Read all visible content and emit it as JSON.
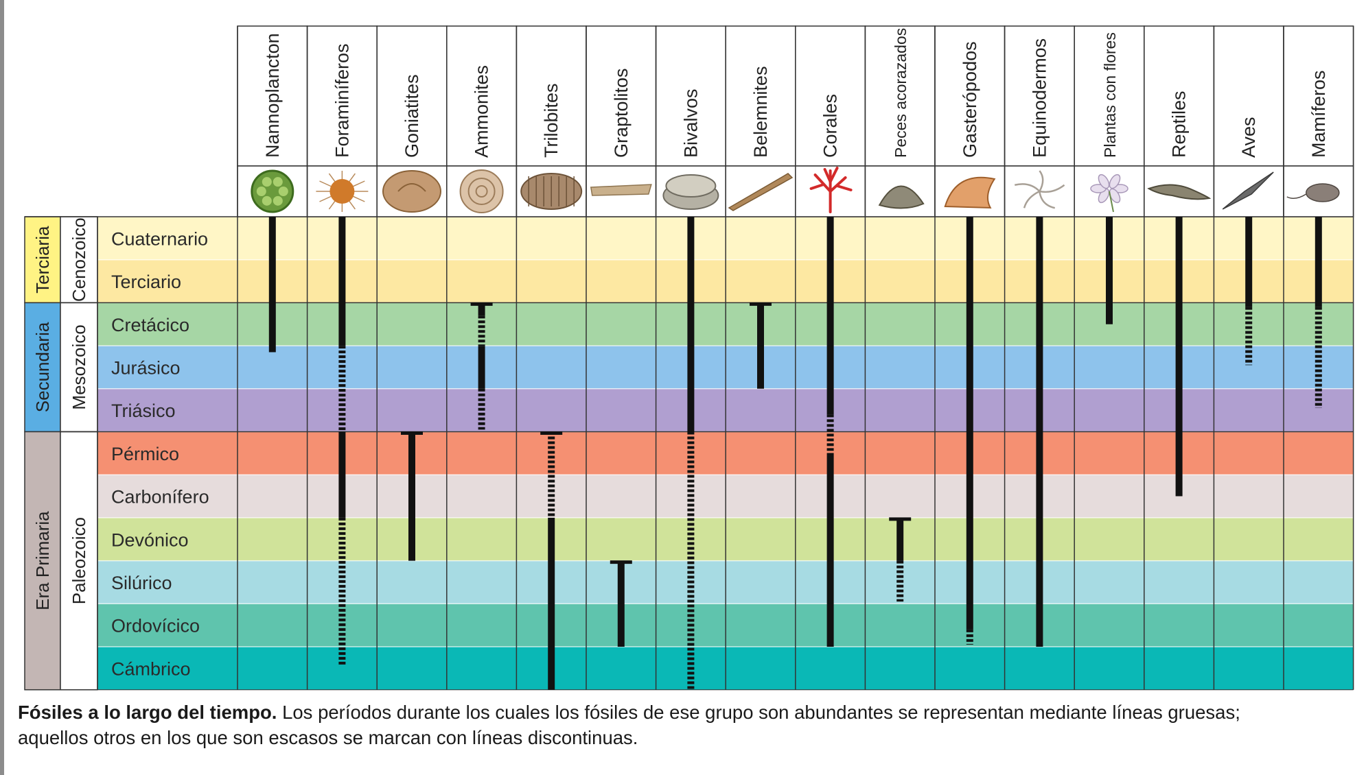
{
  "chart_data": {
    "type": "table",
    "columns": [
      "Nannoplancton",
      "Foraminíferos",
      "Goniatites",
      "Ammonites",
      "Trilobites",
      "Graptolitos",
      "Bivalvos",
      "Belemnites",
      "Corales",
      "Peces acorazados",
      "Gasterópodos",
      "Equinodermos",
      "Plantas con flores",
      "Reptiles",
      "Aves",
      "Mamíferos"
    ],
    "column_icons": [
      "nannoplankton-icon",
      "foraminifera-icon",
      "goniatite-icon",
      "ammonite-icon",
      "trilobite-icon",
      "graptolite-icon",
      "bivalve-icon",
      "belemnite-icon",
      "coral-icon",
      "armored-fish-icon",
      "gastropod-icon",
      "echinoderm-icon",
      "flower-icon",
      "reptile-icon",
      "bird-icon",
      "mammal-icon"
    ],
    "periods": [
      "Cuaternario",
      "Terciario",
      "Cretácico",
      "Jurásico",
      "Triásico",
      "Pérmico",
      "Carbonífero",
      "Devónico",
      "Silúrico",
      "Ordovícico",
      "Cámbrico"
    ],
    "period_colors": [
      "#fff6c6",
      "#fde8a2",
      "#a6d6a5",
      "#8ec3ec",
      "#b09fd0",
      "#f59072",
      "#e6dcdc",
      "#d0e39a",
      "#a7dbe3",
      "#5fc4ad",
      "#0ab8b6"
    ],
    "eras": [
      {
        "label": "Terciaria",
        "start": 0,
        "end": 1,
        "color": "#fff384"
      },
      {
        "label": "Secundaria",
        "start": 2,
        "end": 4,
        "color": "#5aaee3"
      },
      {
        "label": "Era Primaria",
        "start": 5,
        "end": 10,
        "color": "#c3b6b4"
      }
    ],
    "subeons": [
      {
        "label": "Cenozoico",
        "start": 0,
        "end": 1
      },
      {
        "label": "Mesozoico",
        "start": 2,
        "end": 4
      },
      {
        "label": "Paleozoico",
        "start": 5,
        "end": 10
      }
    ],
    "ranges": [
      {
        "column": 0,
        "segments": [
          {
            "from": 0,
            "to": 3.15,
            "style": "abundant"
          }
        ]
      },
      {
        "column": 1,
        "segments": [
          {
            "from": 0,
            "to": 3.0,
            "style": "abundant"
          },
          {
            "from": 3.0,
            "to": 5.0,
            "style": "scarce"
          },
          {
            "from": 5.0,
            "to": 7.0,
            "style": "abundant"
          },
          {
            "from": 7.0,
            "to": 10.45,
            "style": "scarce"
          }
        ]
      },
      {
        "column": 2,
        "segments": [
          {
            "from": 5.0,
            "to": 8.0,
            "style": "abundant",
            "cap": true
          }
        ]
      },
      {
        "column": 3,
        "segments": [
          {
            "from": 2.0,
            "to": 2.3,
            "style": "abundant",
            "cap": true
          },
          {
            "from": 2.3,
            "to": 3.0,
            "style": "scarce"
          },
          {
            "from": 3.0,
            "to": 4.0,
            "style": "abundant"
          },
          {
            "from": 4.0,
            "to": 4.95,
            "style": "scarce"
          }
        ]
      },
      {
        "column": 4,
        "segments": [
          {
            "from": 5.0,
            "to": 7.0,
            "style": "scarce",
            "cap": true
          },
          {
            "from": 7.0,
            "to": 11.0,
            "style": "abundant"
          }
        ]
      },
      {
        "column": 5,
        "segments": [
          {
            "from": 8.0,
            "to": 10.0,
            "style": "abundant",
            "cap": true
          }
        ]
      },
      {
        "column": 6,
        "segments": [
          {
            "from": 0,
            "to": 5.0,
            "style": "abundant"
          },
          {
            "from": 5.0,
            "to": 11.0,
            "style": "scarce"
          }
        ]
      },
      {
        "column": 7,
        "segments": [
          {
            "from": 2.0,
            "to": 4.0,
            "style": "abundant",
            "cap": true
          }
        ]
      },
      {
        "column": 8,
        "segments": [
          {
            "from": 0,
            "to": 4.6,
            "style": "abundant"
          },
          {
            "from": 4.6,
            "to": 5.5,
            "style": "scarce"
          },
          {
            "from": 5.5,
            "to": 10.0,
            "style": "abundant"
          }
        ]
      },
      {
        "column": 9,
        "segments": [
          {
            "from": 7.0,
            "to": 8.0,
            "style": "abundant",
            "cap": true
          },
          {
            "from": 8.0,
            "to": 8.95,
            "style": "scarce"
          }
        ]
      },
      {
        "column": 10,
        "segments": [
          {
            "from": 0,
            "to": 9.6,
            "style": "abundant"
          },
          {
            "from": 9.6,
            "to": 9.95,
            "style": "scarce"
          }
        ]
      },
      {
        "column": 11,
        "segments": [
          {
            "from": 0,
            "to": 10.0,
            "style": "abundant"
          }
        ]
      },
      {
        "column": 12,
        "segments": [
          {
            "from": 0,
            "to": 2.5,
            "style": "abundant"
          }
        ]
      },
      {
        "column": 13,
        "segments": [
          {
            "from": 0,
            "to": 6.5,
            "style": "abundant"
          }
        ]
      },
      {
        "column": 14,
        "segments": [
          {
            "from": 0,
            "to": 2.1,
            "style": "abundant"
          },
          {
            "from": 2.1,
            "to": 3.45,
            "style": "scarce"
          }
        ]
      },
      {
        "column": 15,
        "segments": [
          {
            "from": 0,
            "to": 2.1,
            "style": "abundant"
          },
          {
            "from": 2.1,
            "to": 4.45,
            "style": "scarce"
          }
        ]
      }
    ]
  },
  "caption": {
    "bold": "Fósiles a lo largo del tiempo.",
    "line1": " Los períodos durante los cuales los fósiles de ese grupo son abundantes se representan mediante líneas gruesas;",
    "line2": "aquellos otros en los que son escasos se marcan con líneas discontinuas."
  }
}
